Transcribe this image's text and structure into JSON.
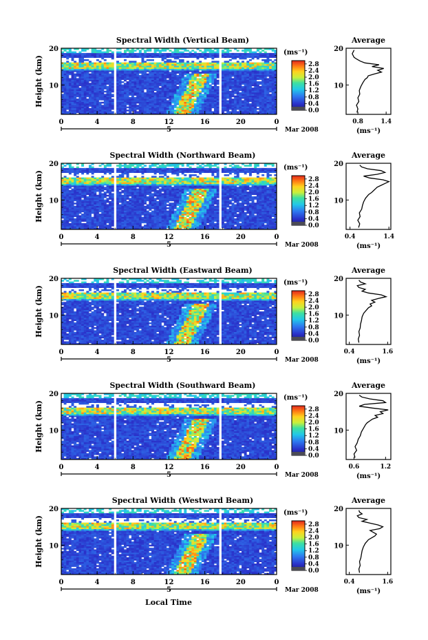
{
  "figure": {
    "xlabel_bottom": "Local Time",
    "date_label": "Mar 2008",
    "day_label": "5"
  },
  "chart_data": [
    {
      "type": "heatmap",
      "title": "Spectral Width (Vertical Beam)",
      "ylabel": "Height (km)",
      "x_ticks": [
        "0",
        "4",
        "8",
        "12",
        "16",
        "20",
        "0"
      ],
      "xlim": [
        0,
        24
      ],
      "y_ticks": [
        "20",
        "10"
      ],
      "ylim": [
        2,
        20
      ],
      "colorbar": {
        "unit": "(ms⁻¹)",
        "ticks": [
          "2.8",
          "2.4",
          "2.0",
          "1.6",
          "1.2",
          "0.8",
          "0.4",
          "0.0"
        ],
        "range": [
          0,
          3.0
        ]
      },
      "profile": {
        "type": "line",
        "title": "Average",
        "xlabel": "(ms⁻¹)",
        "x_ticks": [
          "0.8",
          "1.4"
        ],
        "xlim": [
          0.55,
          1.5
        ],
        "y_ticks": [
          "20",
          "10"
        ],
        "ylim": [
          2,
          20
        ],
        "heights": [
          2.5,
          3.5,
          4.5,
          5.5,
          6.5,
          7.5,
          8.5,
          9.5,
          10.5,
          11.5,
          12.0,
          12.5,
          13.0,
          13.5,
          14.0,
          14.5,
          15.0,
          15.5,
          16.0,
          16.5,
          17.0,
          17.5,
          18.0,
          18.5,
          19.0,
          19.5
        ],
        "values": [
          0.78,
          0.8,
          0.77,
          0.82,
          0.8,
          0.84,
          0.83,
          0.86,
          0.9,
          0.95,
          1.0,
          1.02,
          1.15,
          1.3,
          1.22,
          1.35,
          1.1,
          1.25,
          0.95,
          0.85,
          0.78,
          0.72,
          0.7,
          0.68,
          0.7,
          0.72
        ]
      }
    },
    {
      "type": "heatmap",
      "title": "Spectral Width (Northward Beam)",
      "ylabel": "Height (km)",
      "x_ticks": [
        "0",
        "4",
        "8",
        "12",
        "16",
        "20",
        "0"
      ],
      "xlim": [
        0,
        24
      ],
      "y_ticks": [
        "20",
        "10"
      ],
      "ylim": [
        2,
        20
      ],
      "colorbar": {
        "unit": "(ms⁻¹)",
        "ticks": [
          "2.8",
          "2.4",
          "2.0",
          "1.6",
          "1.2",
          "0.8",
          "0.4",
          "0.0"
        ],
        "range": [
          0,
          3.0
        ]
      },
      "profile": {
        "type": "line",
        "title": "Average",
        "xlabel": "(ms⁻¹)",
        "x_ticks": [
          "0.4",
          "1.4"
        ],
        "xlim": [
          0.3,
          1.45
        ],
        "y_ticks": [
          "20",
          "10"
        ],
        "ylim": [
          2,
          20
        ],
        "heights": [
          2.5,
          3.5,
          4.5,
          5.5,
          6.5,
          7.5,
          8.5,
          9.5,
          10.5,
          11.5,
          12.0,
          12.5,
          13.0,
          13.5,
          14.0,
          14.5,
          15.0,
          15.5,
          16.0,
          16.5,
          17.0,
          17.5,
          18.0,
          18.5,
          19.0,
          19.5
        ],
        "values": [
          0.62,
          0.65,
          0.6,
          0.66,
          0.64,
          0.7,
          0.72,
          0.75,
          0.8,
          0.88,
          0.95,
          1.0,
          1.05,
          1.1,
          1.2,
          1.3,
          1.4,
          1.25,
          0.9,
          0.75,
          1.1,
          1.3,
          1.2,
          0.85,
          0.7,
          0.65
        ]
      }
    },
    {
      "type": "heatmap",
      "title": "Spectral Width (Eastward Beam)",
      "ylabel": "Height (km)",
      "x_ticks": [
        "0",
        "4",
        "8",
        "12",
        "16",
        "20",
        "0"
      ],
      "xlim": [
        0,
        24
      ],
      "y_ticks": [
        "20",
        "10"
      ],
      "ylim": [
        2,
        20
      ],
      "colorbar": {
        "unit": "(ms⁻¹)",
        "ticks": [
          "2.8",
          "2.4",
          "2.0",
          "1.6",
          "1.2",
          "0.8",
          "0.4",
          "0.0"
        ],
        "range": [
          0,
          3.0
        ]
      },
      "profile": {
        "type": "line",
        "title": "Average",
        "xlabel": "(ms⁻¹)",
        "x_ticks": [
          "0.4",
          "1.6"
        ],
        "xlim": [
          0.3,
          1.7
        ],
        "y_ticks": [
          "20",
          "10"
        ],
        "ylim": [
          2,
          20
        ],
        "heights": [
          2.5,
          3.5,
          4.5,
          5.5,
          6.5,
          7.5,
          8.5,
          9.5,
          10.5,
          11.5,
          12.0,
          12.5,
          13.0,
          13.5,
          14.0,
          14.5,
          15.0,
          15.5,
          16.0,
          16.5,
          17.0,
          17.5,
          18.0,
          18.5,
          19.0,
          19.5
        ],
        "values": [
          0.7,
          0.68,
          0.72,
          0.7,
          0.74,
          0.75,
          0.78,
          0.8,
          0.85,
          0.95,
          1.0,
          1.1,
          1.05,
          1.2,
          1.1,
          1.3,
          1.55,
          1.4,
          1.0,
          0.8,
          0.9,
          0.7,
          0.65,
          0.9,
          0.75,
          0.7
        ]
      }
    },
    {
      "type": "heatmap",
      "title": "Spectral Width (Southward Beam)",
      "ylabel": "Height (km)",
      "x_ticks": [
        "0",
        "4",
        "8",
        "12",
        "16",
        "20",
        "0"
      ],
      "xlim": [
        0,
        24
      ],
      "y_ticks": [
        "20",
        "10"
      ],
      "ylim": [
        2,
        20
      ],
      "colorbar": {
        "unit": "(ms⁻¹)",
        "ticks": [
          "2.8",
          "2.4",
          "2.0",
          "1.6",
          "1.2",
          "0.8",
          "0.4",
          "0.0"
        ],
        "range": [
          0,
          3.0
        ]
      },
      "profile": {
        "type": "line",
        "title": "Average",
        "xlabel": "(ms⁻¹)",
        "x_ticks": [
          "0.6",
          "1.2"
        ],
        "xlim": [
          0.45,
          1.3
        ],
        "y_ticks": [
          "20",
          "10"
        ],
        "ylim": [
          2,
          20
        ],
        "heights": [
          2.5,
          3.5,
          4.5,
          5.5,
          6.5,
          7.5,
          8.5,
          9.5,
          10.5,
          11.5,
          12.0,
          12.5,
          13.0,
          13.5,
          14.0,
          14.5,
          15.0,
          15.5,
          16.0,
          16.5,
          17.0,
          17.5,
          18.0,
          18.5,
          19.0,
          19.5
        ],
        "values": [
          0.62,
          0.6,
          0.65,
          0.62,
          0.66,
          0.68,
          0.72,
          0.74,
          0.78,
          0.82,
          0.85,
          0.9,
          0.95,
          1.05,
          1.0,
          1.15,
          1.1,
          1.25,
          0.95,
          0.7,
          0.8,
          1.2,
          1.15,
          0.9,
          0.75,
          0.7
        ]
      }
    },
    {
      "type": "heatmap",
      "title": "Spectral Width (Westward Beam)",
      "ylabel": "Height (km)",
      "x_ticks": [
        "0",
        "4",
        "8",
        "12",
        "16",
        "20",
        "0"
      ],
      "xlim": [
        0,
        24
      ],
      "y_ticks": [
        "20",
        "10"
      ],
      "ylim": [
        2,
        20
      ],
      "colorbar": {
        "unit": "(ms⁻¹)",
        "ticks": [
          "2.8",
          "2.4",
          "2.0",
          "1.6",
          "1.2",
          "0.8",
          "0.4",
          "0.0"
        ],
        "range": [
          0,
          3.0
        ]
      },
      "profile": {
        "type": "line",
        "title": "Average",
        "xlabel": "(ms⁻¹)",
        "x_ticks": [
          "0.4",
          "1.6"
        ],
        "xlim": [
          0.3,
          1.7
        ],
        "y_ticks": [
          "20",
          "10"
        ],
        "ylim": [
          2,
          20
        ],
        "heights": [
          2.5,
          3.5,
          4.5,
          5.5,
          6.5,
          7.5,
          8.5,
          9.5,
          10.5,
          11.5,
          12.0,
          12.5,
          13.0,
          13.5,
          14.0,
          14.5,
          15.0,
          15.5,
          16.0,
          16.5,
          17.0,
          17.5,
          18.0,
          18.5,
          19.0,
          19.5
        ],
        "values": [
          0.72,
          0.7,
          0.74,
          0.72,
          0.76,
          0.78,
          0.8,
          0.84,
          0.9,
          1.0,
          1.1,
          1.2,
          1.25,
          1.15,
          1.05,
          1.35,
          1.45,
          1.3,
          1.05,
          0.8,
          0.95,
          0.7,
          0.65,
          0.8,
          0.72,
          0.7
        ]
      }
    }
  ]
}
